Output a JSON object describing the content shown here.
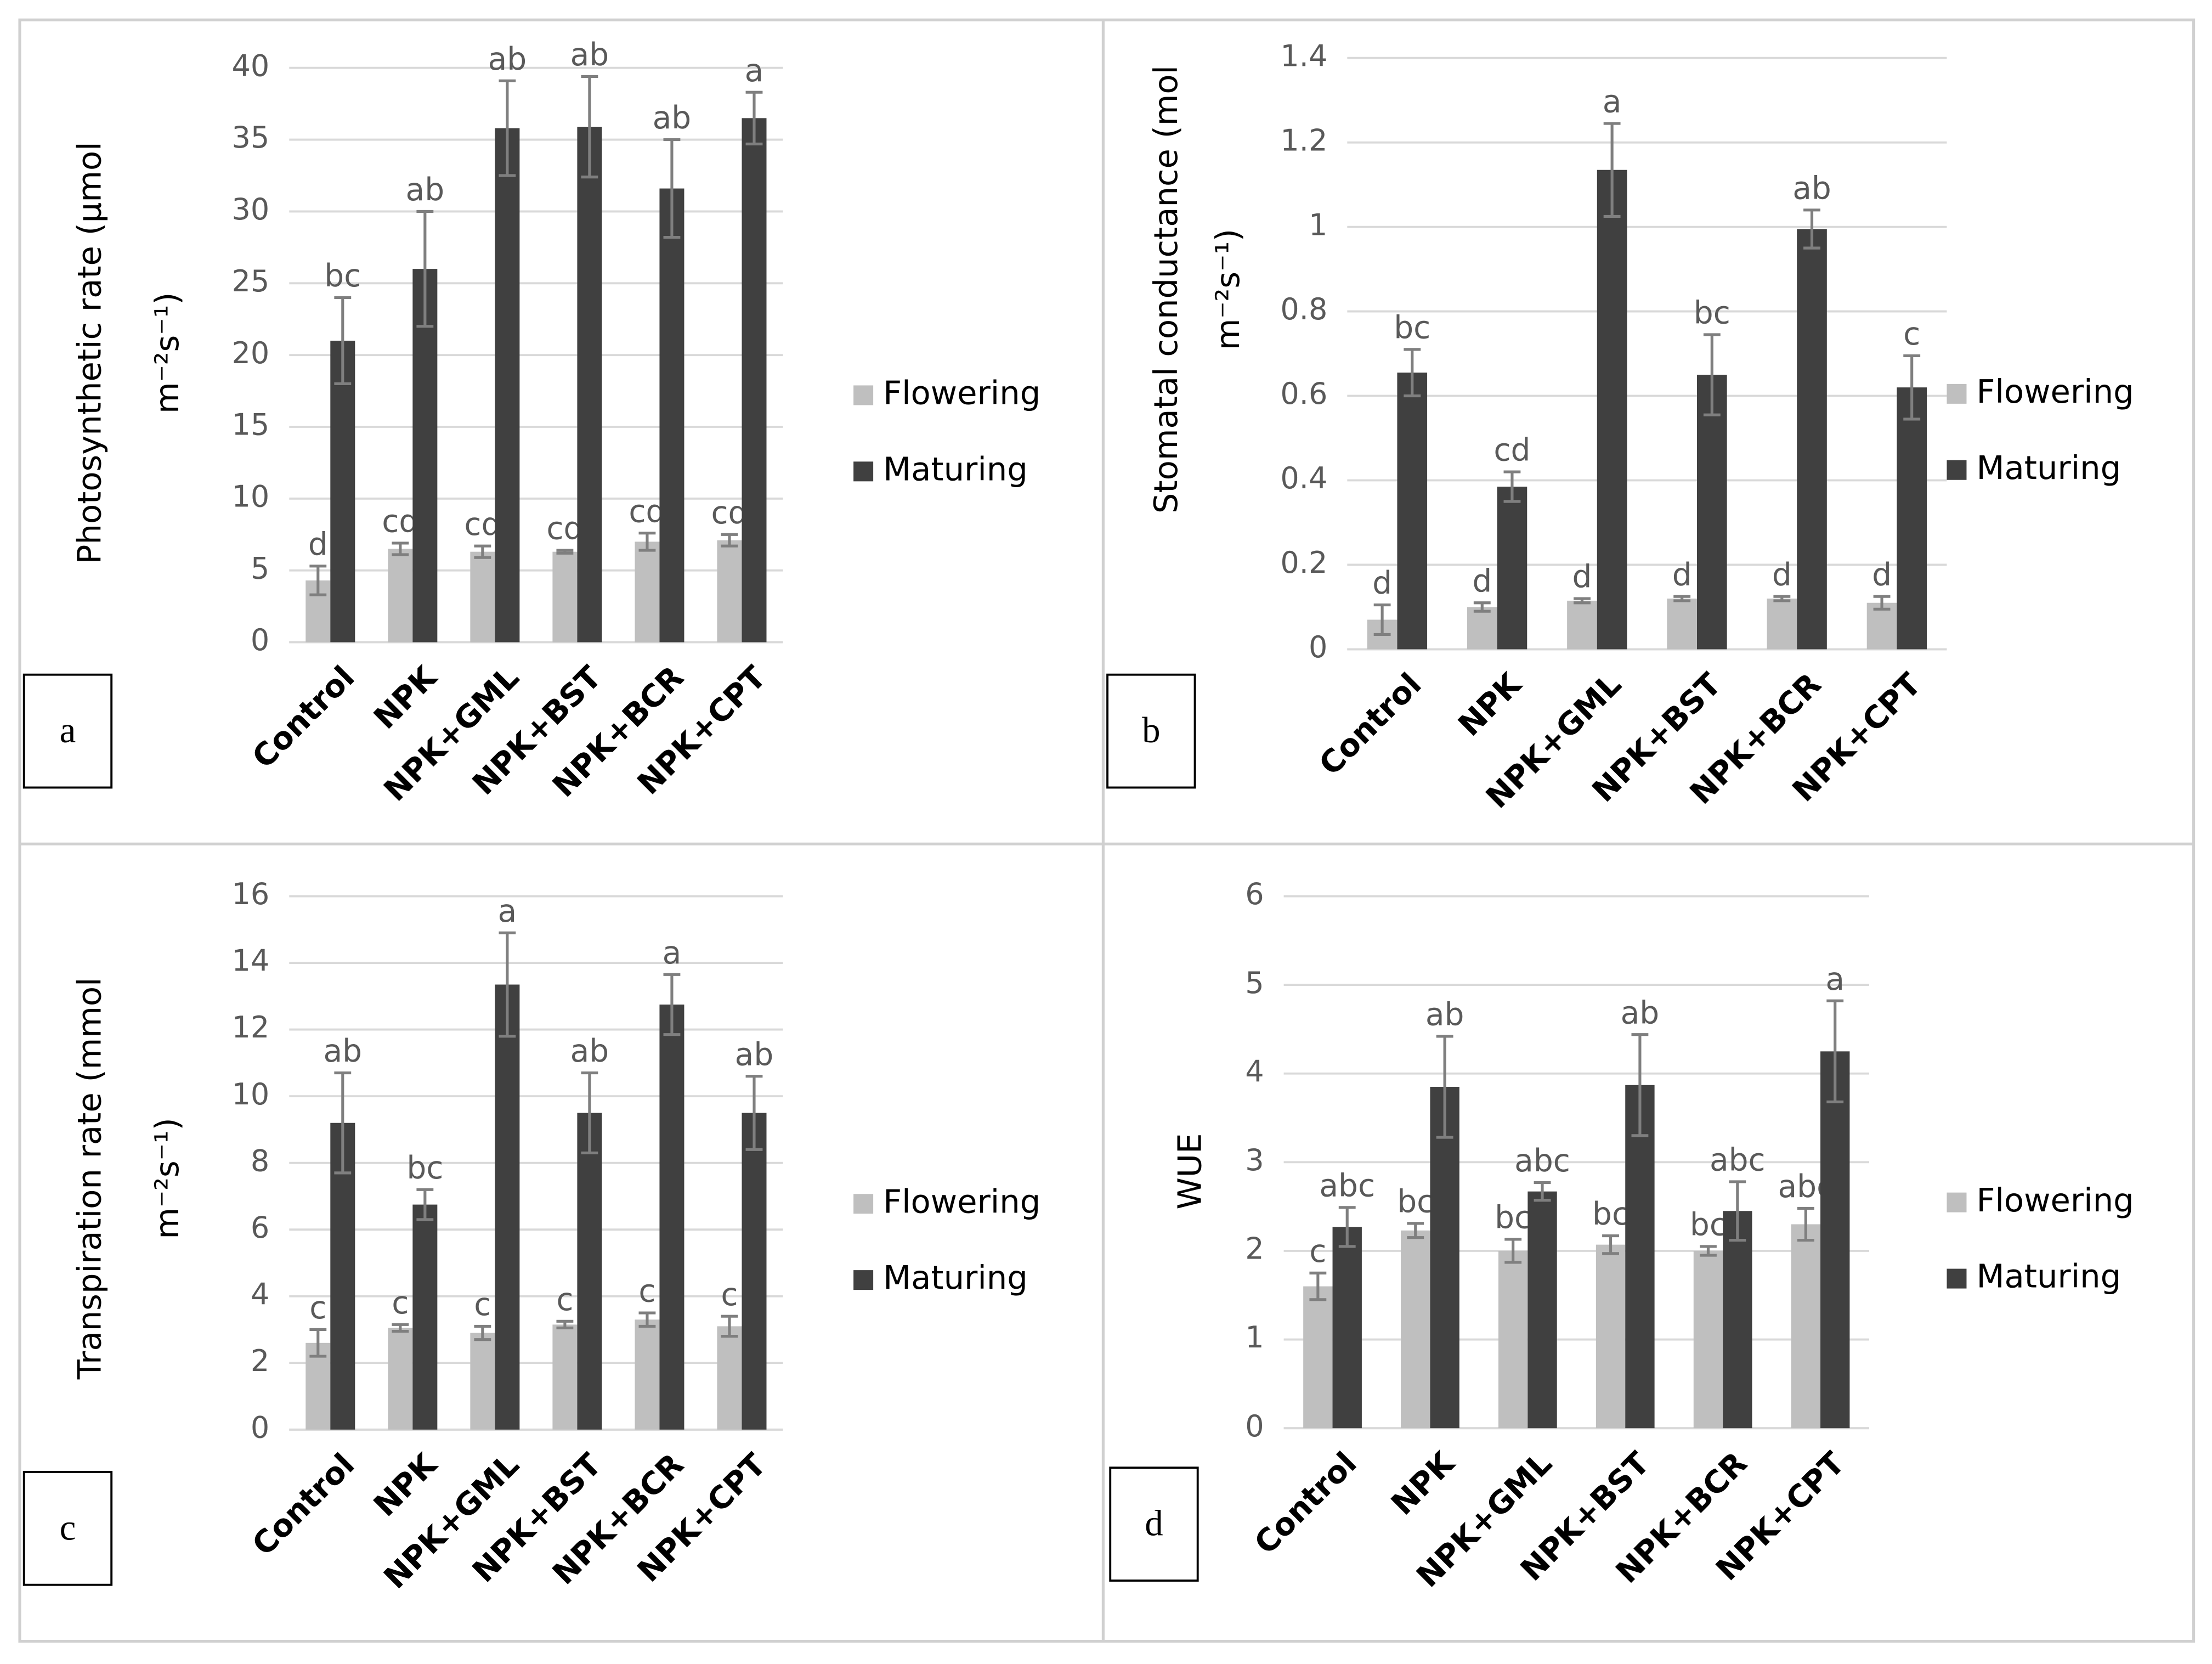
{
  "chart_data": [
    {
      "type": "bar",
      "panel_label": "a",
      "ylabel": [
        "Photosynthetic rate (µmol",
        "m⁻²s⁻¹)"
      ],
      "categories": [
        "Control",
        "NPK",
        "NPK+GML",
        "NPK+BST",
        "NPK+BCR",
        "NPK+CPT"
      ],
      "series": [
        {
          "name": "Flowering",
          "color": "#bfbfbf",
          "values": [
            4.3,
            6.5,
            6.3,
            6.3,
            7.0,
            7.1
          ],
          "errors": [
            1.0,
            0.4,
            0.4,
            0.1,
            0.6,
            0.4
          ],
          "letters": [
            "d",
            "cd",
            "cd",
            "cd",
            "cd",
            "cd"
          ]
        },
        {
          "name": "Maturing",
          "color": "#404040",
          "values": [
            21,
            26,
            35.8,
            35.9,
            31.6,
            36.5
          ],
          "errors": [
            3.0,
            4.0,
            3.3,
            3.5,
            3.4,
            1.8
          ],
          "letters": [
            "bc",
            "ab",
            "ab",
            "ab",
            "ab",
            "a"
          ]
        }
      ],
      "ylim": [
        0,
        40
      ],
      "yticks": [
        0,
        5,
        10,
        15,
        20,
        25,
        30,
        35,
        40
      ],
      "grid": true,
      "legend": "right"
    },
    {
      "type": "bar",
      "panel_label": "b",
      "ylabel": [
        "Stomatal conductance (mol",
        "m⁻²s⁻¹)"
      ],
      "categories": [
        "Control",
        "NPK",
        "NPK+GML",
        "NPK+BST",
        "NPK+BCR",
        "NPK+CPT"
      ],
      "series": [
        {
          "name": "Flowering",
          "color": "#bfbfbf",
          "values": [
            0.07,
            0.1,
            0.115,
            0.12,
            0.12,
            0.11
          ],
          "errors": [
            0.035,
            0.01,
            0.005,
            0.005,
            0.005,
            0.015
          ],
          "letters": [
            "d",
            "d",
            "d",
            "d",
            "d",
            "d"
          ]
        },
        {
          "name": "Maturing",
          "color": "#404040",
          "values": [
            0.655,
            0.385,
            1.135,
            0.65,
            0.995,
            0.62
          ],
          "errors": [
            0.055,
            0.035,
            0.11,
            0.095,
            0.045,
            0.075
          ],
          "letters": [
            "bc",
            "cd",
            "a",
            "bc",
            "ab",
            "c"
          ]
        }
      ],
      "ylim": [
        0,
        1.4
      ],
      "yticks": [
        0,
        0.2,
        0.4,
        0.6,
        0.8,
        1,
        1.2,
        1.4
      ],
      "grid": true,
      "legend": "right"
    },
    {
      "type": "bar",
      "panel_label": "c",
      "ylabel": [
        "Transpiration rate (mmol",
        "m⁻²s⁻¹)"
      ],
      "categories": [
        "Control",
        "NPK",
        "NPK+GML",
        "NPK+BST",
        "NPK+BCR",
        "NPK+CPT"
      ],
      "series": [
        {
          "name": "Flowering",
          "color": "#bfbfbf",
          "values": [
            2.6,
            3.05,
            2.9,
            3.15,
            3.3,
            3.1
          ],
          "errors": [
            0.4,
            0.1,
            0.2,
            0.1,
            0.2,
            0.3
          ],
          "letters": [
            "c",
            "c",
            "c",
            "c",
            "c",
            "c"
          ]
        },
        {
          "name": "Maturing",
          "color": "#404040",
          "values": [
            9.2,
            6.75,
            13.35,
            9.5,
            12.75,
            9.5
          ],
          "errors": [
            1.5,
            0.45,
            1.55,
            1.2,
            0.9,
            1.1
          ],
          "letters": [
            "ab",
            "bc",
            "a",
            "ab",
            "a",
            "ab"
          ]
        }
      ],
      "ylim": [
        0,
        16
      ],
      "yticks": [
        0,
        2,
        4,
        6,
        8,
        10,
        12,
        14,
        16
      ],
      "grid": true,
      "legend": "right"
    },
    {
      "type": "bar",
      "panel_label": "d",
      "ylabel": [
        "WUE"
      ],
      "categories": [
        "Control",
        "NPK",
        "NPK+GML",
        "NPK+BST",
        "NPK+BCR",
        "NPK+CPT"
      ],
      "series": [
        {
          "name": "Flowering",
          "color": "#bfbfbf",
          "values": [
            1.6,
            2.23,
            2.0,
            2.07,
            2.0,
            2.3
          ],
          "errors": [
            0.15,
            0.08,
            0.13,
            0.1,
            0.05,
            0.18
          ],
          "letters": [
            "c",
            "bc",
            "bc",
            "bc",
            "bc",
            "abc"
          ]
        },
        {
          "name": "Maturing",
          "color": "#404040",
          "values": [
            2.27,
            3.85,
            2.67,
            3.87,
            2.45,
            4.25
          ],
          "errors": [
            0.22,
            0.57,
            0.1,
            0.57,
            0.33,
            0.57
          ],
          "letters": [
            "abc",
            "ab",
            "abc",
            "ab",
            "abc",
            "a"
          ]
        }
      ],
      "ylim": [
        0,
        6
      ],
      "yticks": [
        0,
        1,
        2,
        3,
        4,
        5,
        6
      ],
      "grid": true,
      "legend": "right"
    }
  ]
}
